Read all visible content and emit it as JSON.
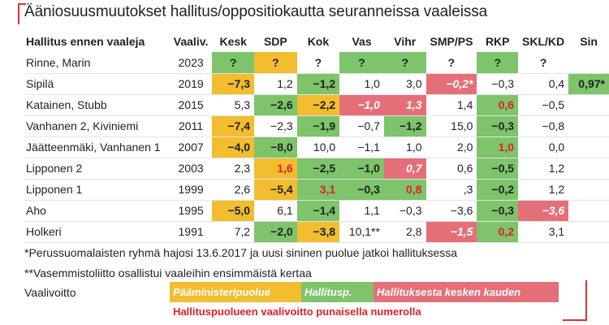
{
  "title": "Ääniosuusmuutokset hallitus/oppositiokautta seuranneissa vaaleissa",
  "columns": [
    "Hallitus ennen vaaleja",
    "Vaaliv.",
    "Kesk",
    "SDP",
    "Kok",
    "Vas",
    "Vihr",
    "SMP/PS",
    "RKP",
    "SKL/KD",
    "Sin"
  ],
  "rows": [
    {
      "name": "Rinne, Marin",
      "year": "2023",
      "cells": [
        "?",
        "?",
        "?",
        "?",
        "?",
        "?",
        "?",
        "?",
        ""
      ]
    },
    {
      "name": "Sipilä",
      "year": "2019",
      "cells": [
        "−7,3",
        "1,2",
        "−1,2",
        "1,0",
        "3,0",
        "−0,2*",
        "−0,3",
        "0,4",
        "0,97*"
      ]
    },
    {
      "name": "Katainen, Stubb",
      "year": "2015",
      "cells": [
        "5,3",
        "−2,6",
        "−2,2",
        "−1,0",
        "1,3",
        "1,4",
        "0,6",
        "−0,5",
        ""
      ]
    },
    {
      "name": "Vanhanen 2, Kiviniemi",
      "year": "2011",
      "cells": [
        "−7,4",
        "−2,3",
        "−1,9",
        "−0,7",
        "−1,2",
        "15,0",
        "−0,3",
        "−0,8",
        ""
      ]
    },
    {
      "name": "Jäätteenmäki, Vanhanen 1",
      "year": "2007",
      "cells": [
        "−4,0",
        "−8,0",
        "10,0",
        "−1,1",
        "1,0",
        "2,0",
        "1,0",
        "0,0",
        ""
      ]
    },
    {
      "name": "Lipponen 2",
      "year": "2003",
      "cells": [
        "2,3",
        "1,6",
        "−2,5",
        "−1,0",
        "0,7",
        "0,6",
        "−0,5",
        "1,2",
        ""
      ]
    },
    {
      "name": "Lipponen 1",
      "year": "1999",
      "cells": [
        "2,6",
        "−5,4",
        "3,1",
        "−0,3",
        "0,8",
        ",3",
        "−0,2",
        "1,2",
        ""
      ]
    },
    {
      "name": "Aho",
      "year": "1995",
      "cells": [
        "−5,0",
        "6,1",
        "−1,4",
        "1,1",
        "−0,3",
        "−3,6",
        "−0,3",
        "−3,6",
        ""
      ]
    },
    {
      "name": "Holkeri",
      "year": "1991",
      "cells": [
        "7,2",
        "−2,0",
        "−3,8",
        "10,1**",
        "2,8",
        "−1,5",
        "0,2",
        "3,1",
        ""
      ]
    }
  ],
  "notes": [
    "*Perussuomalaisten ryhmä hajosi 13.6.2017 ja uusi sininen puolue jatkoi hallituksessa",
    "**Vasemmistoliitto osallistui vaaleihin ensimmäistä kertaa"
  ],
  "legend": {
    "label": "Vaalivoitto",
    "pm": "Pääministeripuolue",
    "gov": "Hallitusp.",
    "left": "Hallituksesta kesken kauden",
    "red_note": "Hallituspuolueen vaalivoitto  punaisella numerolla"
  },
  "colors": {
    "pm_party": "#f2bd2e",
    "gov_party": "#7dc46a",
    "left_gov": "#e56f78",
    "red_number": "#e0202a",
    "accent_frame": "#e0302f"
  }
}
